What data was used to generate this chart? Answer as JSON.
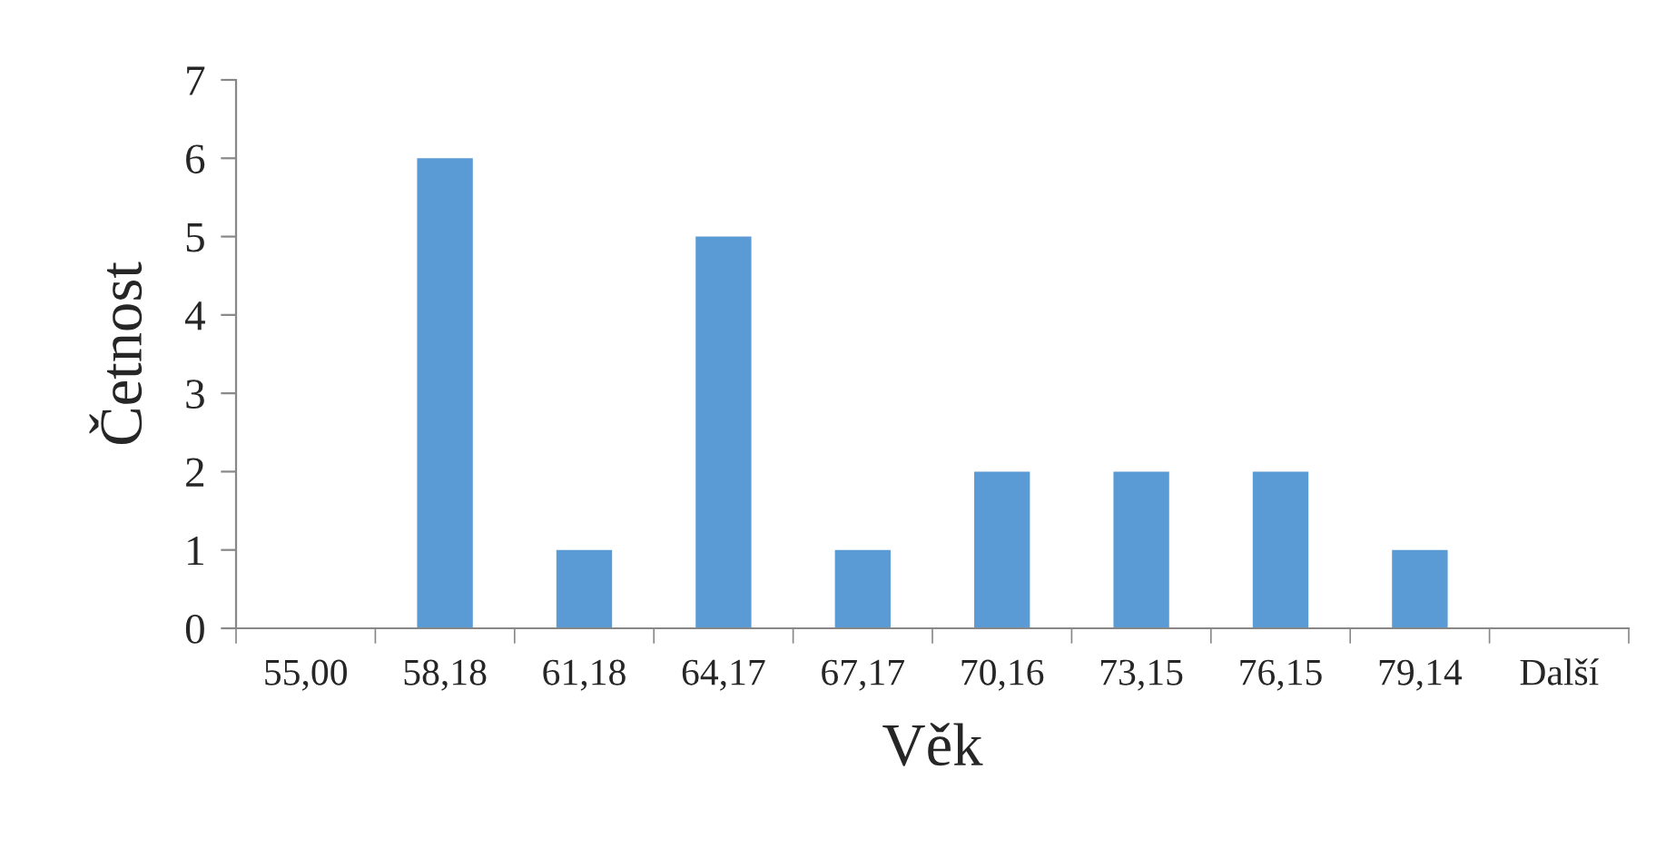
{
  "chart_data": {
    "type": "bar",
    "xlabel": "Věk",
    "ylabel": "Četnost",
    "categories": [
      "55,00",
      "58,18",
      "61,18",
      "64,17",
      "67,17",
      "70,16",
      "73,15",
      "76,15",
      "79,14",
      "Další"
    ],
    "values": [
      0,
      6,
      1,
      5,
      1,
      2,
      2,
      2,
      1,
      0
    ],
    "color": "#5b9bd5",
    "ylim": [
      0,
      7
    ],
    "yticks": [
      0,
      1,
      2,
      3,
      4,
      5,
      6,
      7
    ],
    "grid": false,
    "legend": false
  }
}
